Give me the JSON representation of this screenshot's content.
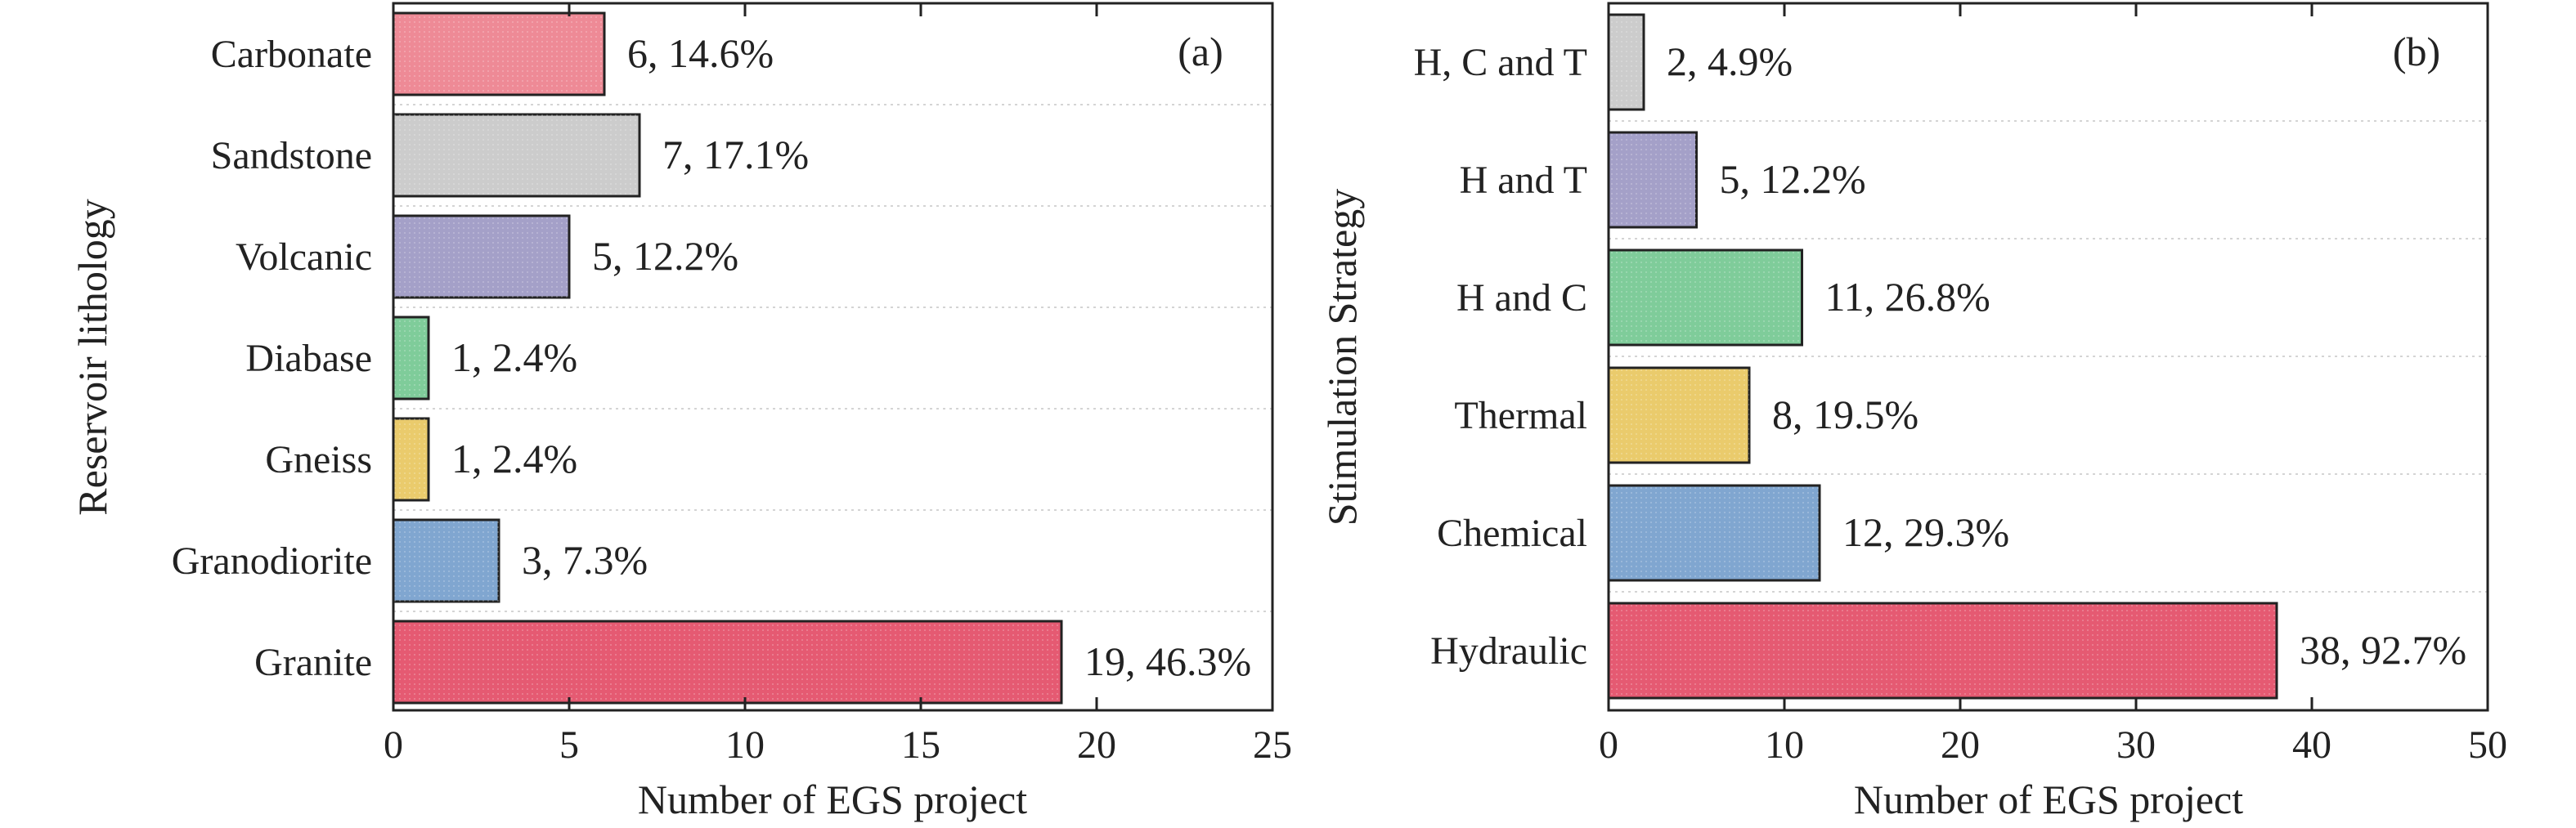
{
  "chart_data": [
    {
      "type": "bar",
      "orientation": "horizontal",
      "panel": "(a)",
      "ylabel": "Reservoir lithology",
      "xlabel": "Number of EGS project",
      "xlim": [
        0,
        25
      ],
      "xticks": [
        "0",
        "5",
        "10",
        "15",
        "20",
        "25"
      ],
      "grid": true,
      "categories": [
        "Carbonate",
        "Sandstone",
        "Volcanic",
        "Diabase",
        "Gneiss",
        "Granodiorite",
        "Granite"
      ],
      "values": [
        6,
        7,
        5,
        1,
        1,
        3,
        19
      ],
      "labels": [
        "6, 14.6%",
        "7, 17.1%",
        "5, 12.2%",
        "1, 2.4%",
        "1, 2.4%",
        "3, 7.3%",
        "19, 46.3%"
      ],
      "colors": [
        "#ee8a96",
        "#cccccc",
        "#a4a0c8",
        "#7fcc9a",
        "#eacb6c",
        "#80a6d0",
        "#e55a72"
      ]
    },
    {
      "type": "bar",
      "orientation": "horizontal",
      "panel": "(b)",
      "ylabel": "Stimulation Strategy",
      "xlabel": "Number of EGS project",
      "xlim": [
        0,
        50
      ],
      "xticks": [
        "0",
        "10",
        "20",
        "30",
        "40",
        "50"
      ],
      "grid": true,
      "categories": [
        "H, C and T",
        "H and T",
        "H and C",
        "Thermal",
        "Chemical",
        "Hydraulic"
      ],
      "values": [
        2,
        5,
        11,
        8,
        12,
        38
      ],
      "labels": [
        "2, 4.9%",
        "5, 12.2%",
        "11, 26.8%",
        "8, 19.5%",
        "12, 29.3%",
        "38, 92.7%"
      ],
      "colors": [
        "#cccccc",
        "#a4a0c8",
        "#7fcc9a",
        "#eacb6c",
        "#80a6d0",
        "#e55a72"
      ]
    }
  ]
}
